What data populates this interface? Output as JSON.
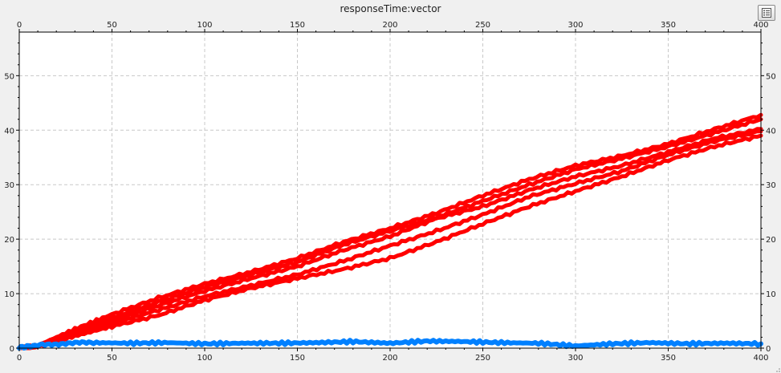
{
  "window": {
    "legend_button_icon": "legend-list-icon",
    "background_color": "#f0f0f0"
  },
  "chart_data": {
    "type": "line",
    "title": "responseTime:vector",
    "xlabel": "",
    "ylabel": "",
    "xlim": [
      0,
      400
    ],
    "ylim": [
      0,
      58
    ],
    "x_ticks": [
      0,
      50,
      100,
      150,
      200,
      250,
      300,
      350,
      400
    ],
    "y_ticks": [
      0,
      10,
      20,
      30,
      40,
      50
    ],
    "axes": {
      "x_top": true,
      "x_bottom": true,
      "y_left": true,
      "y_right": true
    },
    "grid": true,
    "grid_style": "dashed",
    "legend": "hidden",
    "colors": {
      "red": "#ff0000",
      "blue": "#0080ff",
      "grid": "#c8c8c8",
      "axis": "#000000"
    },
    "series": [
      {
        "color": "#ff0000",
        "stroke_width": 5,
        "x": [
          0,
          10,
          30,
          50,
          75,
          100,
          125,
          150,
          175,
          200,
          225,
          250,
          275,
          300,
          325,
          350,
          375,
          400
        ],
        "y": [
          0,
          0.5,
          3.5,
          6.2,
          9.2,
          11.8,
          14.0,
          16.5,
          19.5,
          22.0,
          24.8,
          28.0,
          31.0,
          33.5,
          35.3,
          37.5,
          40.2,
          42.8
        ]
      },
      {
        "color": "#ff0000",
        "stroke_width": 5,
        "x": [
          0,
          10,
          30,
          50,
          75,
          100,
          125,
          150,
          175,
          200,
          225,
          250,
          275,
          300,
          325,
          350,
          375,
          400
        ],
        "y": [
          0,
          0.4,
          3.0,
          5.5,
          8.5,
          11.2,
          13.5,
          15.8,
          19.0,
          21.5,
          24.0,
          27.0,
          30.0,
          32.8,
          34.8,
          37.0,
          39.5,
          42.0
        ]
      },
      {
        "color": "#ff0000",
        "stroke_width": 5,
        "x": [
          0,
          10,
          30,
          50,
          75,
          100,
          125,
          150,
          175,
          200,
          225,
          250,
          275,
          300,
          325,
          350,
          375,
          400
        ],
        "y": [
          0,
          0.4,
          2.8,
          5.0,
          7.8,
          10.5,
          12.8,
          15.0,
          18.0,
          20.5,
          23.8,
          26.0,
          29.0,
          31.5,
          33.5,
          36.0,
          38.5,
          40.2
        ]
      },
      {
        "color": "#ff0000",
        "stroke_width": 5,
        "x": [
          0,
          10,
          30,
          50,
          75,
          100,
          125,
          150,
          175,
          200,
          225,
          250,
          275,
          300,
          325,
          350,
          375,
          400
        ],
        "y": [
          0,
          0.3,
          2.5,
          4.5,
          7.0,
          9.5,
          11.5,
          13.5,
          16.0,
          18.8,
          21.5,
          24.5,
          27.8,
          30.2,
          32.5,
          35.5,
          38.0,
          39.8
        ]
      },
      {
        "color": "#ff0000",
        "stroke_width": 5,
        "x": [
          0,
          10,
          30,
          50,
          75,
          100,
          125,
          150,
          175,
          200,
          225,
          250,
          275,
          300,
          325,
          350,
          375,
          400
        ],
        "y": [
          0,
          0.3,
          2.2,
          4.0,
          6.0,
          8.8,
          11.0,
          12.8,
          14.5,
          16.5,
          19.5,
          22.8,
          26.0,
          28.8,
          31.5,
          34.5,
          37.0,
          39.0
        ]
      },
      {
        "color": "#0080ff",
        "stroke_width": 6,
        "x": [
          0,
          10,
          25,
          40,
          60,
          80,
          100,
          120,
          140,
          160,
          180,
          200,
          220,
          240,
          260,
          280,
          300,
          320,
          340,
          360,
          380,
          400
        ],
        "y": [
          0.1,
          0.5,
          0.9,
          1.0,
          0.9,
          1.0,
          0.8,
          0.9,
          0.9,
          1.0,
          1.2,
          0.9,
          1.3,
          1.2,
          1.0,
          0.9,
          0.4,
          0.8,
          1.0,
          0.8,
          0.9,
          0.8
        ]
      }
    ]
  }
}
